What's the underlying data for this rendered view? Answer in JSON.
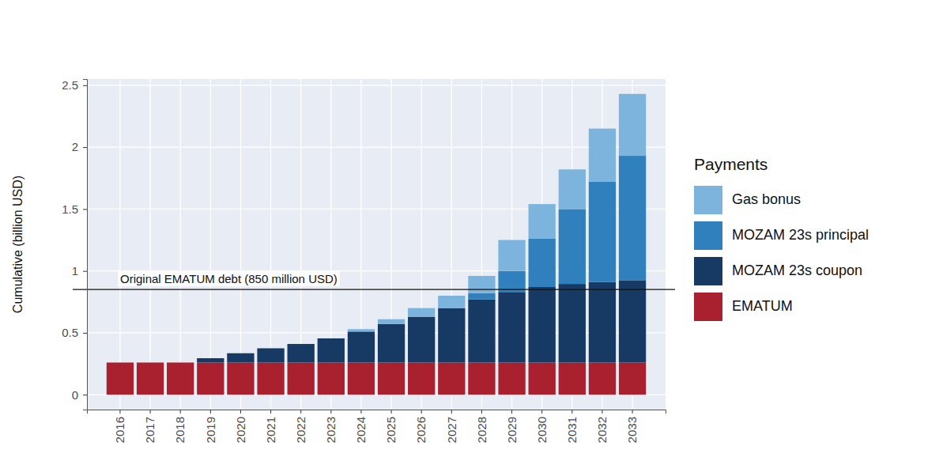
{
  "chart_data": {
    "type": "bar",
    "stacked": true,
    "grid": true,
    "legend": "right",
    "legend_title": "Payments",
    "y_label": "Cumulative (billion USD)",
    "categories": [
      "2016",
      "2017",
      "2018",
      "2019",
      "2020",
      "2021",
      "2022",
      "2023",
      "2024",
      "2025",
      "2026",
      "2027",
      "2028",
      "2029",
      "2030",
      "2031",
      "2032",
      "2033"
    ],
    "series": [
      {
        "name": "EMATUM",
        "color": "#a9202f",
        "values": [
          0.26,
          0.26,
          0.26,
          0.26,
          0.26,
          0.26,
          0.26,
          0.26,
          0.26,
          0.26,
          0.26,
          0.26,
          0.26,
          0.26,
          0.26,
          0.26,
          0.26,
          0.26
        ]
      },
      {
        "name": "MOZAM 23s coupon",
        "color": "#173a65",
        "values": [
          0,
          0,
          0,
          0.035,
          0.075,
          0.115,
          0.15,
          0.195,
          0.25,
          0.31,
          0.37,
          0.44,
          0.51,
          0.57,
          0.61,
          0.635,
          0.65,
          0.665
        ]
      },
      {
        "name": "MOZAM 23s principal",
        "color": "#2f80bd",
        "values": [
          0,
          0,
          0,
          0,
          0,
          0,
          0,
          0,
          0,
          0,
          0,
          0,
          0.05,
          0.17,
          0.39,
          0.605,
          0.81,
          1.005
        ]
      },
      {
        "name": "Gas bonus",
        "color": "#7db4de",
        "values": [
          0,
          0,
          0,
          0,
          0,
          0,
          0,
          0,
          0.02,
          0.04,
          0.07,
          0.1,
          0.14,
          0.25,
          0.28,
          0.32,
          0.43,
          0.5
        ]
      }
    ],
    "ylim": [
      -0.12,
      2.55
    ],
    "yticks": [
      0,
      0.5,
      1,
      1.5,
      2,
      2.5
    ],
    "annotations": [
      {
        "text": "Original EMATUM debt (850 million USD)",
        "y": 0.85
      }
    ]
  }
}
